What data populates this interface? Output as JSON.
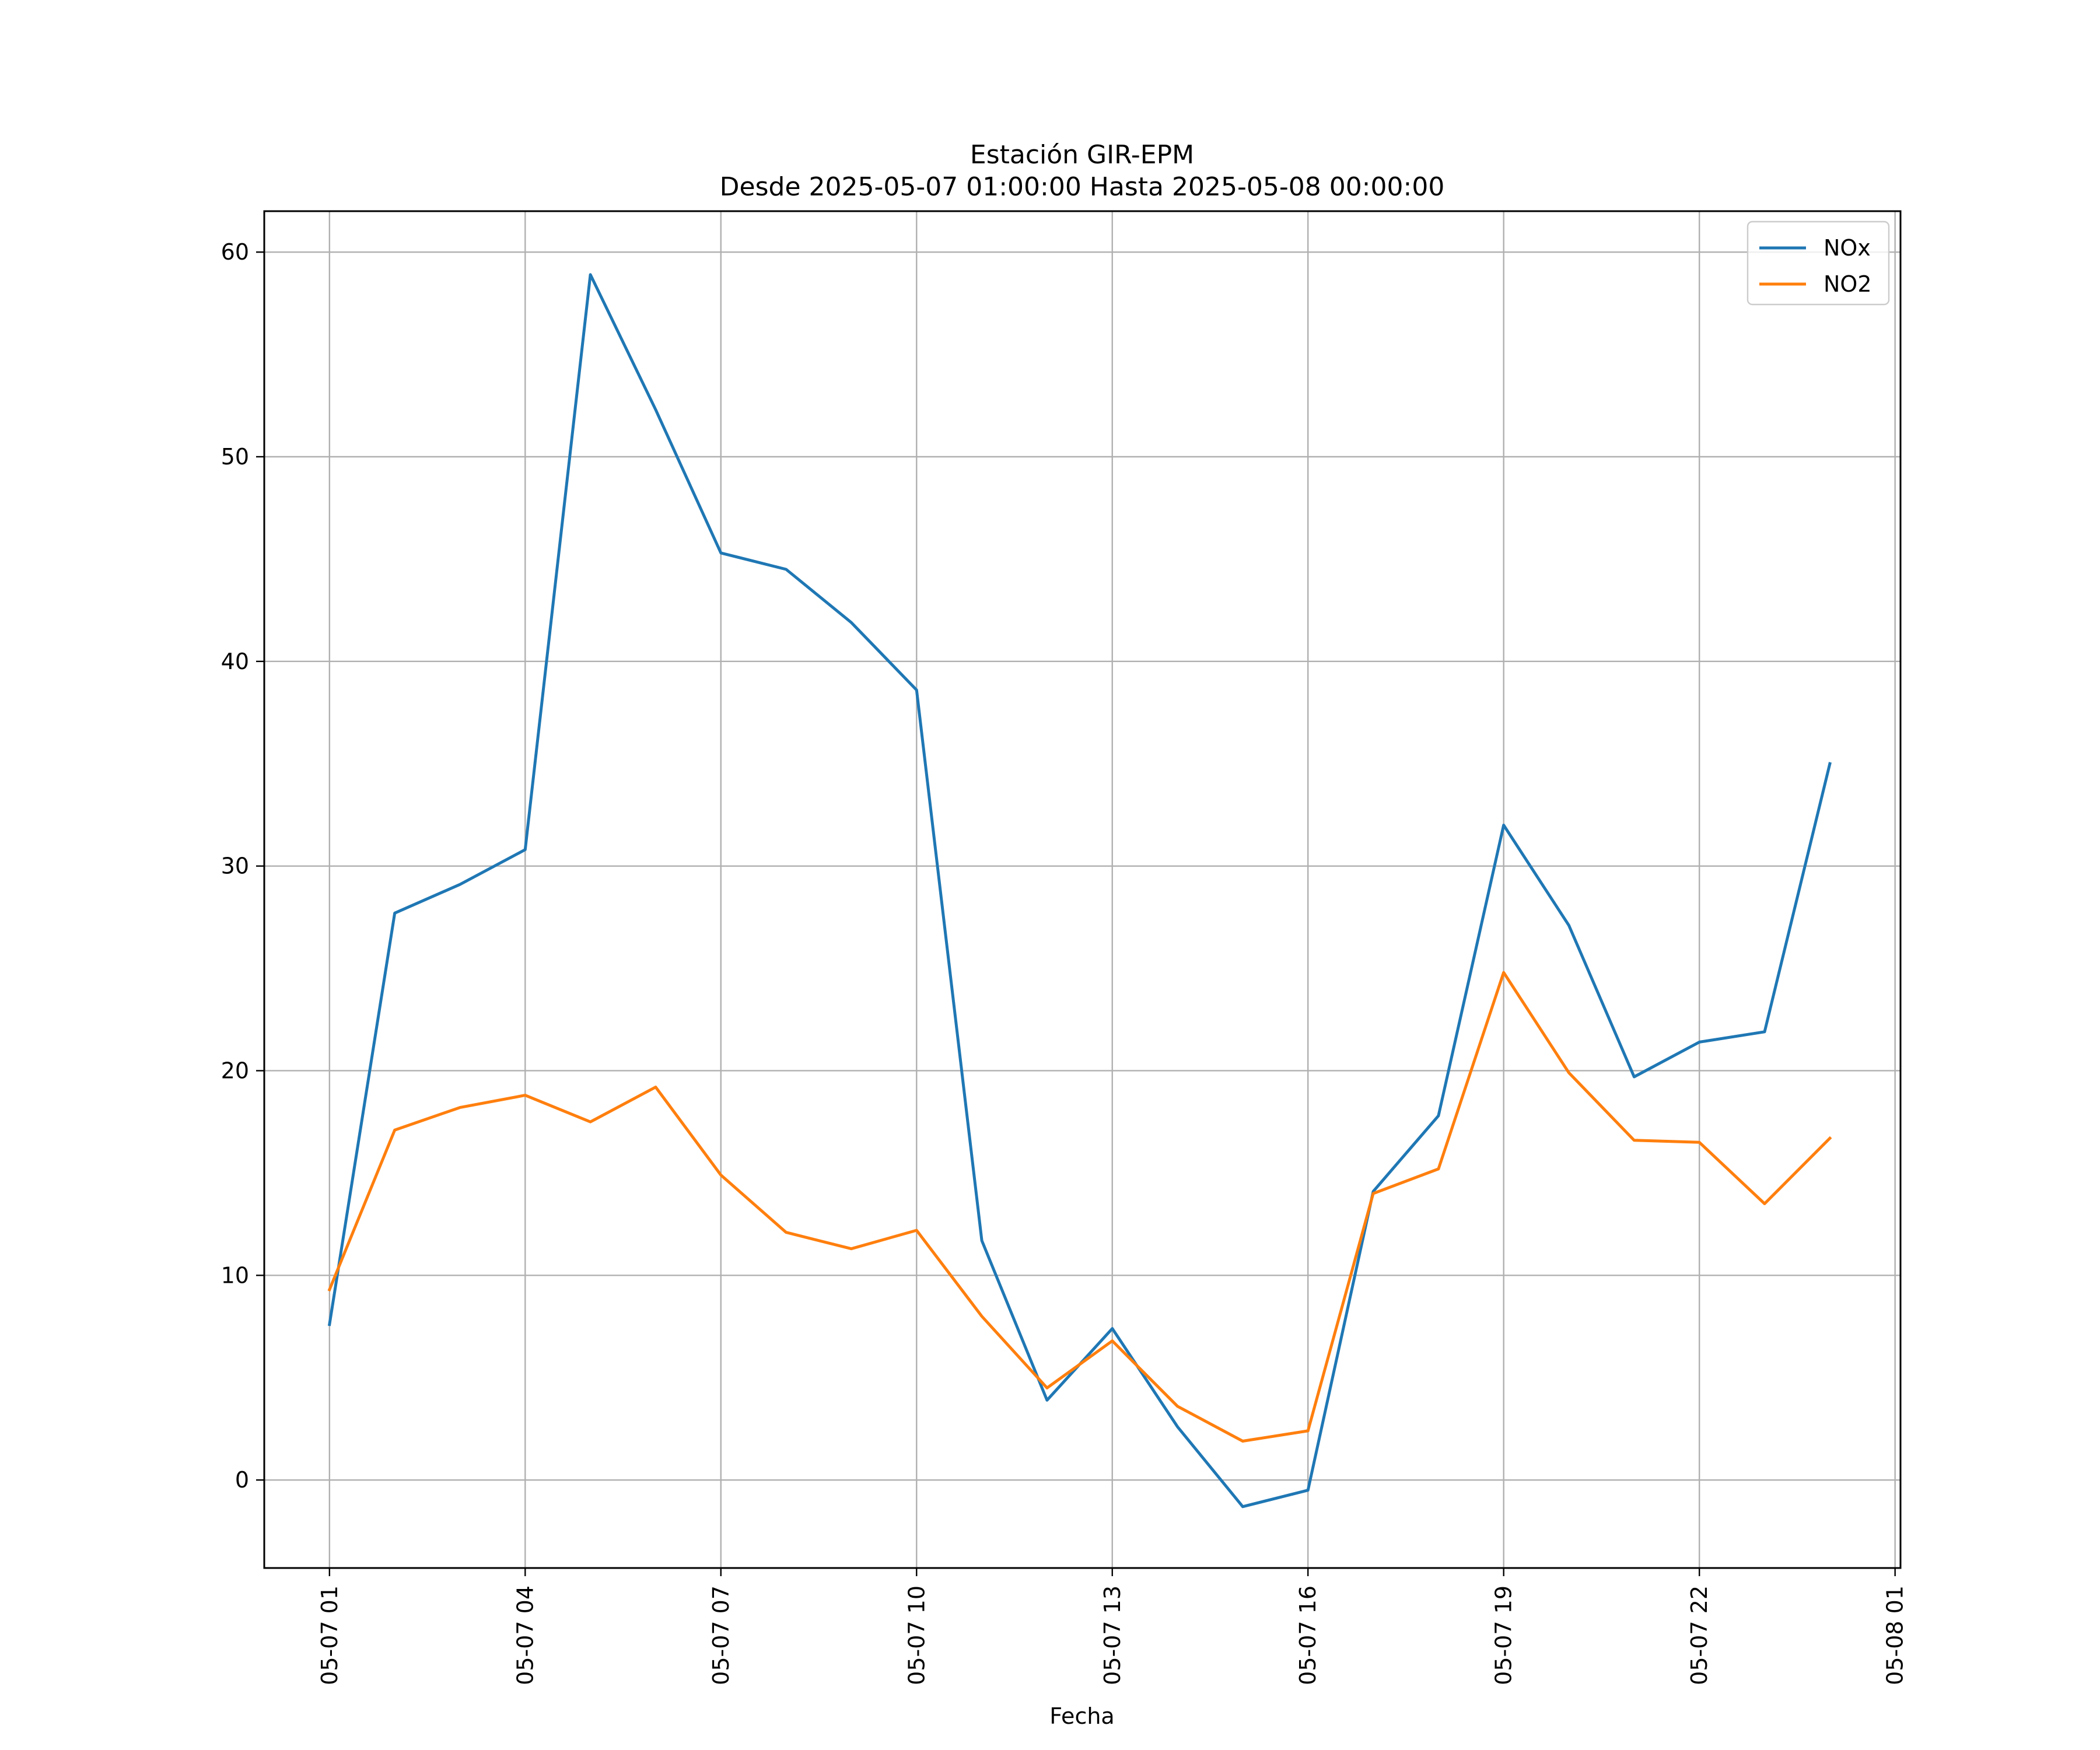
{
  "chart_data": {
    "type": "line",
    "title": "Estación GIR-EPM",
    "subtitle": "Desde 2025-05-07 01:00:00 Hasta 2025-05-08 00:00:00",
    "xlabel": "Fecha",
    "ylabel": "",
    "x": [
      "2025-05-07 01:00",
      "2025-05-07 02:00",
      "2025-05-07 03:00",
      "2025-05-07 04:00",
      "2025-05-07 05:00",
      "2025-05-07 06:00",
      "2025-05-07 07:00",
      "2025-05-07 08:00",
      "2025-05-07 09:00",
      "2025-05-07 10:00",
      "2025-05-07 11:00",
      "2025-05-07 12:00",
      "2025-05-07 13:00",
      "2025-05-07 14:00",
      "2025-05-07 15:00",
      "2025-05-07 16:00",
      "2025-05-07 17:00",
      "2025-05-07 18:00",
      "2025-05-07 19:00",
      "2025-05-07 20:00",
      "2025-05-07 21:00",
      "2025-05-07 22:00",
      "2025-05-07 23:00",
      "2025-05-08 00:00"
    ],
    "x_ticks": [
      "2025-05-07 01:00",
      "2025-05-07 04:00",
      "2025-05-07 07:00",
      "2025-05-07 10:00",
      "2025-05-07 13:00",
      "2025-05-07 16:00",
      "2025-05-07 19:00",
      "2025-05-07 22:00",
      "2025-05-08 01:00"
    ],
    "x_tick_labels": [
      "05-07 01",
      "05-07 04",
      "05-07 07",
      "05-07 10",
      "05-07 13",
      "05-07 16",
      "05-07 19",
      "05-07 22",
      "05-08 01"
    ],
    "xlim": [
      "2025-05-07 00:00",
      "2025-05-08 01:05"
    ],
    "y_ticks": [
      0,
      10,
      20,
      30,
      40,
      50,
      60
    ],
    "y_tick_labels": [
      "0",
      "10",
      "20",
      "30",
      "40",
      "50",
      "60"
    ],
    "ylim": [
      -4.3,
      62
    ],
    "grid": true,
    "legend_position": "top-right",
    "series": [
      {
        "name": "NOx",
        "color": "#1f77b4",
        "values": [
          7.6,
          27.7,
          29.1,
          30.8,
          58.9,
          52.3,
          45.3,
          44.5,
          41.9,
          38.6,
          11.7,
          3.9,
          7.4,
          2.6,
          -1.3,
          -0.5,
          14.1,
          17.8,
          32.0,
          27.1,
          19.7,
          21.4,
          21.9,
          35.0
        ]
      },
      {
        "name": "NO2",
        "color": "#ff7f0e",
        "values": [
          9.3,
          17.1,
          18.2,
          18.8,
          17.5,
          19.2,
          14.9,
          12.1,
          11.3,
          12.2,
          8.0,
          4.5,
          6.8,
          3.6,
          1.9,
          2.4,
          14.0,
          15.2,
          24.8,
          19.9,
          16.6,
          16.5,
          13.5,
          16.7
        ]
      }
    ]
  }
}
